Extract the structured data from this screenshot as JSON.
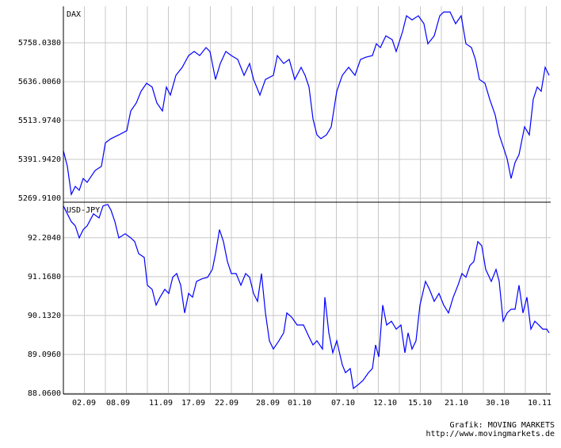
{
  "chart_data": [
    {
      "type": "line",
      "title": "DAX",
      "xlim": [
        0,
        123
      ],
      "ylim": [
        5257.5,
        5872.6
      ],
      "yticks": [
        {
          "value": 5269.91,
          "label": "5269.9100"
        },
        {
          "value": 5391.942,
          "label": "5391.9420"
        },
        {
          "value": 5513.974,
          "label": "5513.9740"
        },
        {
          "value": 5636.006,
          "label": "5636.0060"
        },
        {
          "value": 5758.038,
          "label": "5758.0380"
        }
      ],
      "grid": true,
      "series": [
        {
          "name": "DAX",
          "color": "#0000ff",
          "x": [
            0,
            1,
            2,
            3,
            4,
            5,
            6,
            8,
            9.6,
            10.6,
            12,
            14,
            16,
            17,
            18.4,
            19.6,
            21,
            22.4,
            23.6,
            25,
            26,
            27,
            28.4,
            30,
            31.6,
            33,
            34.4,
            36,
            37,
            38.4,
            39.6,
            41,
            42.4,
            44,
            45.6,
            47,
            48,
            49.6,
            51,
            53,
            54,
            55.6,
            57,
            58.4,
            60,
            61,
            62,
            63,
            64,
            65,
            66.4,
            67.6,
            69,
            70.4,
            72,
            73.6,
            75,
            76.4,
            78,
            79,
            80,
            81.4,
            83,
            84,
            85.6,
            86.6,
            88,
            89.6,
            91,
            92,
            93.6,
            95,
            96,
            97.6,
            99,
            100.4,
            101.6,
            103,
            104,
            105,
            106.4,
            107.6,
            109,
            110,
            111,
            112,
            113,
            114,
            115,
            116.4,
            117.6,
            118.6,
            119.6,
            120.6,
            121.6,
            122.6
          ],
          "values": [
            5419,
            5370,
            5282,
            5307,
            5295,
            5332,
            5320,
            5357,
            5370,
            5444,
            5457,
            5469,
            5482,
            5544,
            5569,
            5606,
            5631,
            5619,
            5569,
            5544,
            5619,
            5594,
            5656,
            5681,
            5718,
            5731,
            5718,
            5743,
            5731,
            5643,
            5693,
            5731,
            5718,
            5706,
            5656,
            5693,
            5643,
            5594,
            5643,
            5656,
            5718,
            5693,
            5706,
            5643,
            5681,
            5656,
            5619,
            5519,
            5469,
            5457,
            5469,
            5494,
            5606,
            5656,
            5681,
            5656,
            5706,
            5713,
            5718,
            5755,
            5743,
            5780,
            5768,
            5731,
            5793,
            5843,
            5830,
            5843,
            5818,
            5755,
            5780,
            5843,
            5855,
            5855,
            5818,
            5843,
            5755,
            5743,
            5706,
            5643,
            5631,
            5581,
            5531,
            5469,
            5432,
            5394,
            5332,
            5382,
            5407,
            5494,
            5469,
            5581,
            5619,
            5606,
            5681,
            5656
          ]
        }
      ]
    },
    {
      "type": "line",
      "title": "USD-JPY",
      "xlim": [
        0,
        123
      ],
      "ylim": [
        88.04,
        93.15
      ],
      "yticks": [
        {
          "value": 88.06,
          "label": "88.0600"
        },
        {
          "value": 89.096,
          "label": "89.0960"
        },
        {
          "value": 90.132,
          "label": "90.1320"
        },
        {
          "value": 91.168,
          "label": "91.1680"
        },
        {
          "value": 92.204,
          "label": "92.2040"
        }
      ],
      "xticks": [
        {
          "value": 5.2,
          "label": "02.09"
        },
        {
          "value": 13.8,
          "label": "08.09"
        },
        {
          "value": 24.6,
          "label": "11.09"
        },
        {
          "value": 32.8,
          "label": "17.09"
        },
        {
          "value": 41.2,
          "label": "22.09"
        },
        {
          "value": 51.6,
          "label": "28.09"
        },
        {
          "value": 59.6,
          "label": "01.10"
        },
        {
          "value": 70.6,
          "label": "07.10"
        },
        {
          "value": 81.2,
          "label": "12.10"
        },
        {
          "value": 90,
          "label": "15.10"
        },
        {
          "value": 99.2,
          "label": "21.10"
        },
        {
          "value": 109.6,
          "label": "30.10"
        },
        {
          "value": 120.2,
          "label": "10.11"
        }
      ],
      "grid": true,
      "series": [
        {
          "name": "USD-JPY",
          "color": "#0000ff",
          "x": [
            0,
            1,
            2,
            3,
            4,
            5,
            6,
            7.6,
            9,
            10,
            11.2,
            12,
            13,
            14,
            15.6,
            17,
            18,
            19,
            20.4,
            21.2,
            22.4,
            23.4,
            24.4,
            25.6,
            26.6,
            27.6,
            28.6,
            29.6,
            30.6,
            31.6,
            32.6,
            33.6,
            35,
            36.4,
            37.6,
            38.4,
            39.4,
            40.4,
            41.4,
            42.4,
            43.6,
            44.8,
            46,
            47,
            48,
            49,
            50,
            51,
            52,
            53,
            54.4,
            55.6,
            56.4,
            57.6,
            59,
            60.6,
            62,
            63,
            64,
            65.4,
            66,
            67,
            68,
            69,
            70.4,
            71.2,
            72.4,
            73.2,
            74.4,
            75.6,
            77,
            78,
            78.8,
            79.6,
            80.6,
            81.6,
            82.8,
            84,
            85.2,
            86.2,
            87,
            88,
            89,
            90,
            91.4,
            92.4,
            93.6,
            94.8,
            96,
            97.2,
            98.4,
            99.6,
            100.6,
            101.6,
            102.6,
            103.6,
            104.6,
            105.6,
            106.6,
            108,
            109.2,
            110,
            111,
            112,
            113,
            114,
            115,
            116,
            117,
            118,
            119,
            120,
            121,
            122,
            122.6
          ],
          "values": [
            93.05,
            92.84,
            92.63,
            92.52,
            92.2,
            92.42,
            92.52,
            92.84,
            92.73,
            93.05,
            93.09,
            92.94,
            92.63,
            92.2,
            92.31,
            92.2,
            92.1,
            91.78,
            91.68,
            90.94,
            90.83,
            90.41,
            90.62,
            90.83,
            90.72,
            91.15,
            91.25,
            90.94,
            90.2,
            90.72,
            90.62,
            91.04,
            91.11,
            91.15,
            91.36,
            91.78,
            92.42,
            92.1,
            91.57,
            91.25,
            91.25,
            90.94,
            91.25,
            91.15,
            90.72,
            90.51,
            91.25,
            90.2,
            89.46,
            89.24,
            89.46,
            89.67,
            90.2,
            90.09,
            89.88,
            89.88,
            89.56,
            89.35,
            89.46,
            89.24,
            90.62,
            89.67,
            89.14,
            89.46,
            88.82,
            88.61,
            88.72,
            88.19,
            88.29,
            88.4,
            88.61,
            88.72,
            89.35,
            89.03,
            90.41,
            89.88,
            89.98,
            89.77,
            89.88,
            89.14,
            89.67,
            89.24,
            89.46,
            90.41,
            91.04,
            90.83,
            90.51,
            90.72,
            90.41,
            90.2,
            90.62,
            90.94,
            91.25,
            91.15,
            91.46,
            91.57,
            92.1,
            91.99,
            91.36,
            91.04,
            91.36,
            91.04,
            89.98,
            90.2,
            90.3,
            90.3,
            90.94,
            90.2,
            90.62,
            89.77,
            89.98,
            89.88,
            89.77,
            89.77,
            89.67
          ]
        }
      ]
    }
  ],
  "credit": [
    "Grafik: MOVING MARKETS",
    "http://www.movingmarkets.de"
  ]
}
